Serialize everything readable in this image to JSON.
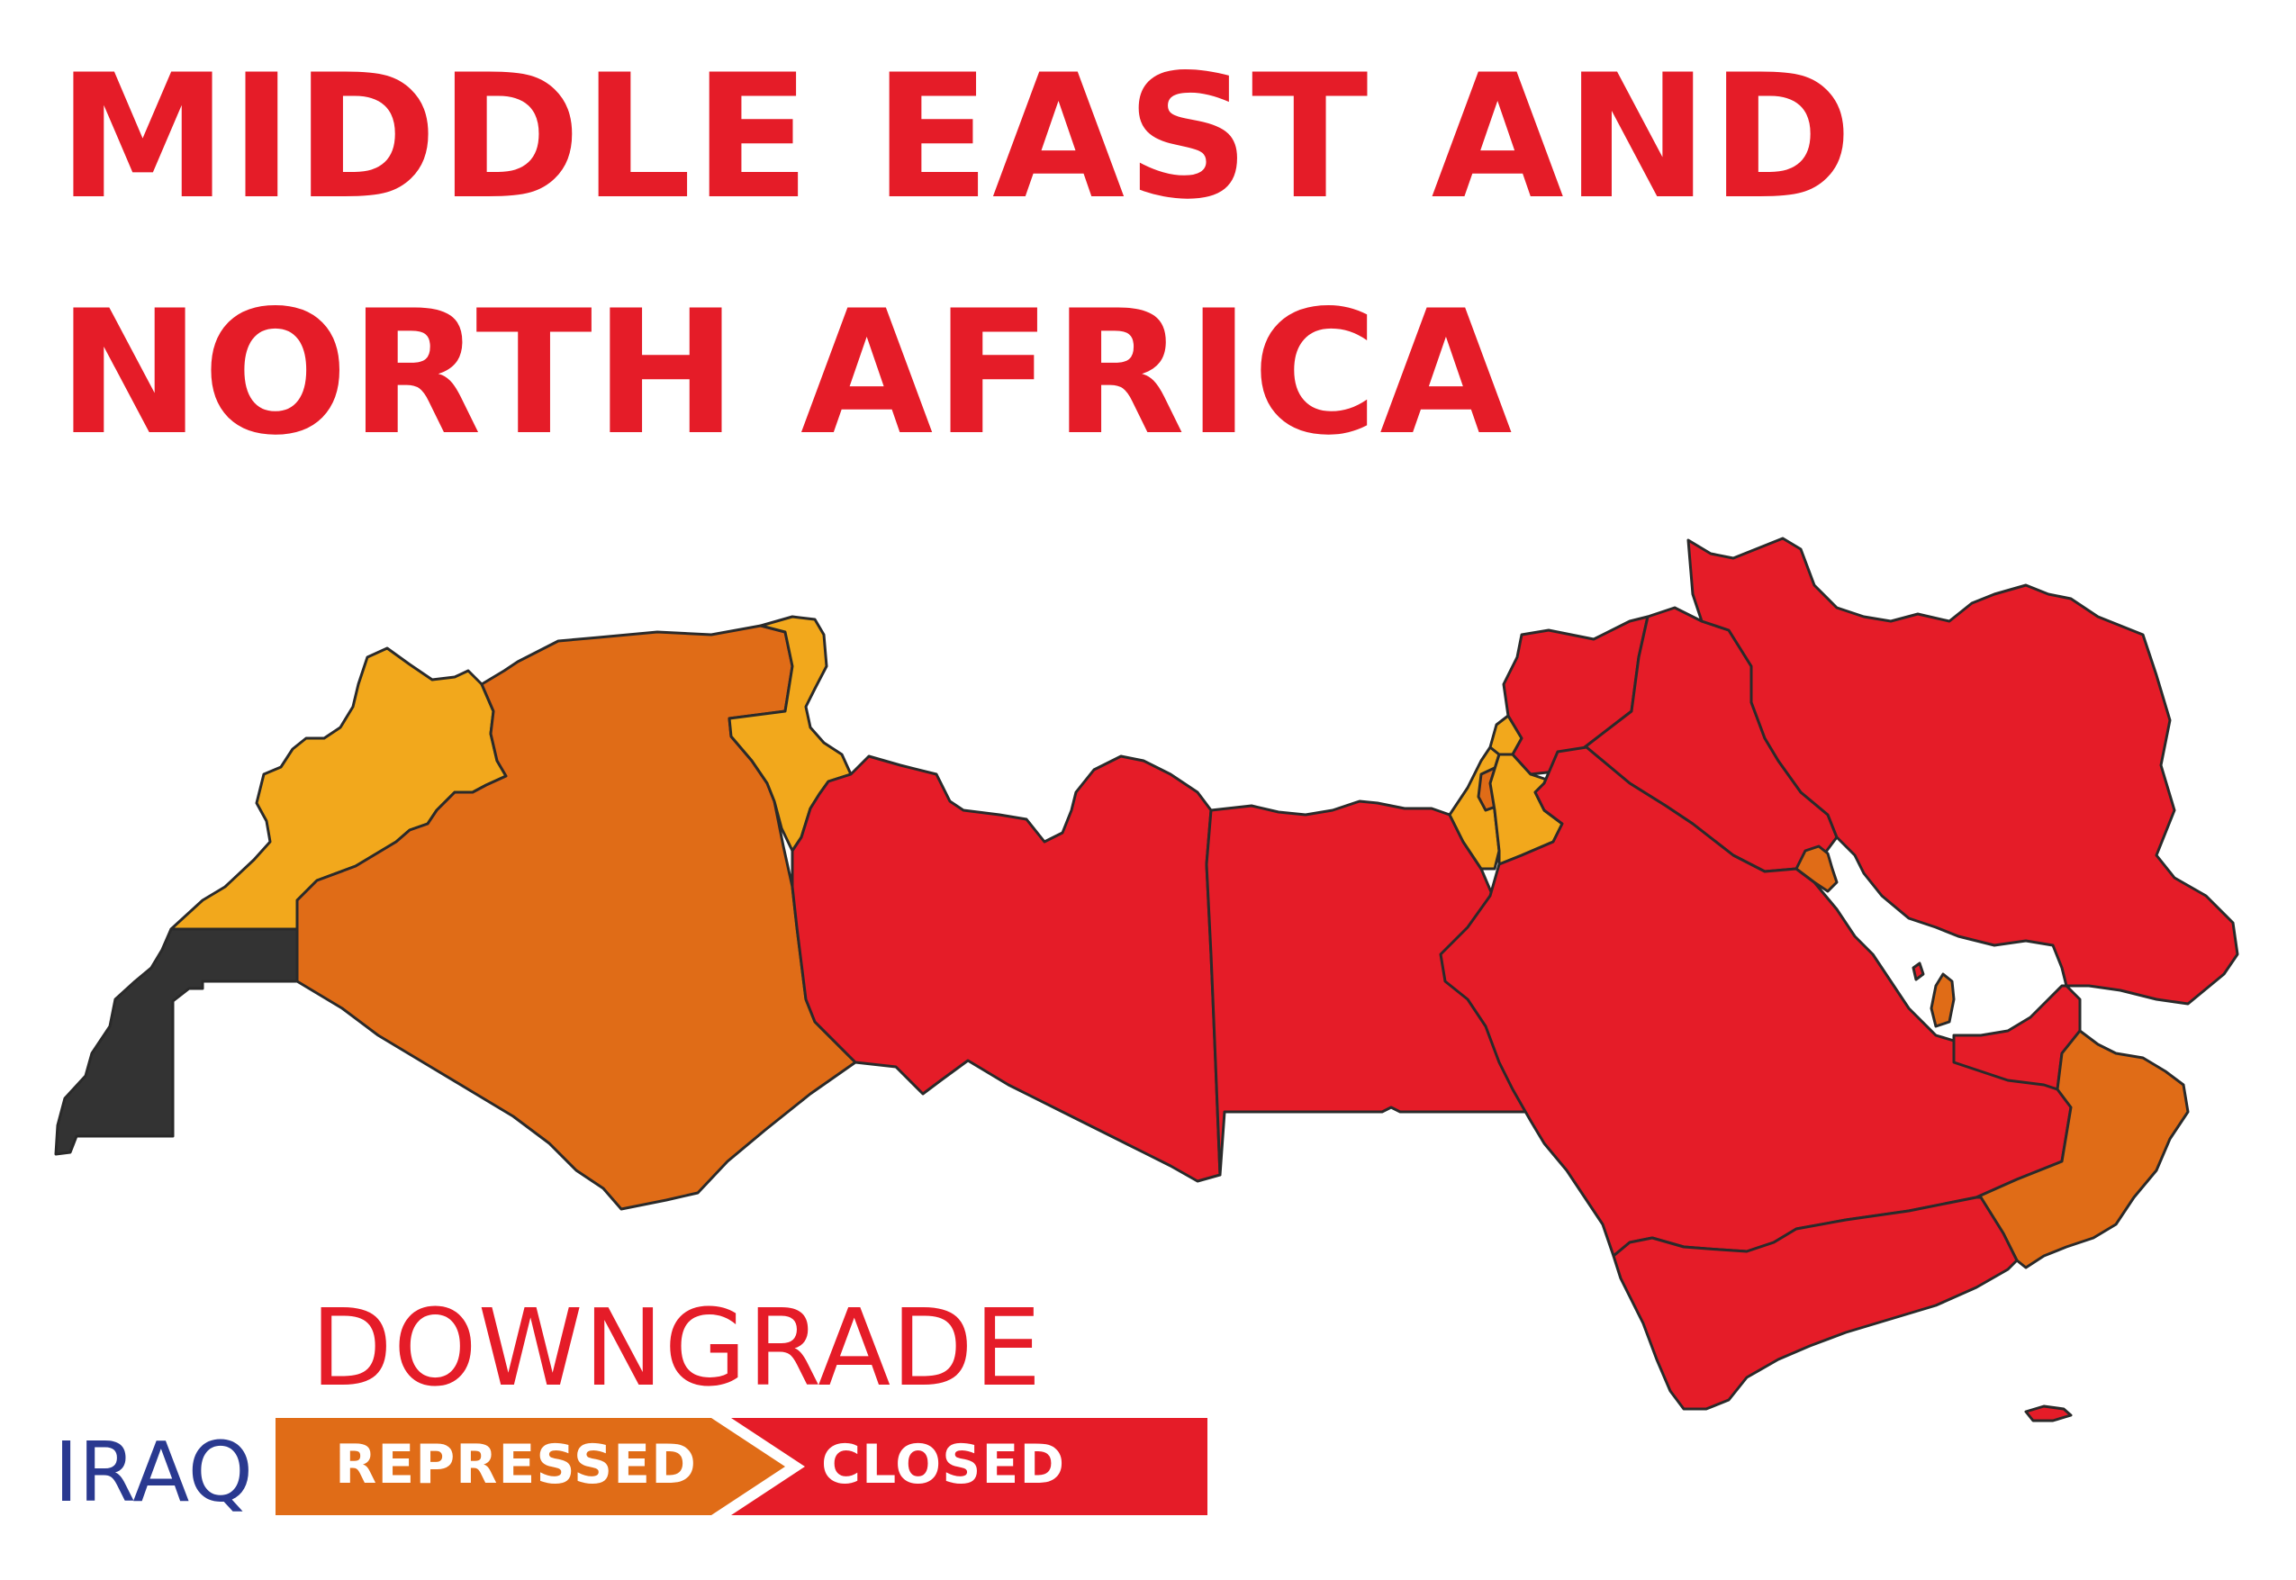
{
  "title": {
    "line1": "MIDDLE EAST AND",
    "line2": "NORTH AFRICA"
  },
  "legend": {
    "heading": "DOWNGRADE",
    "country": "IRAQ",
    "from_label": "REPRESSED",
    "to_label": "CLOSED"
  },
  "colors": {
    "closed": "#e51c28",
    "repressed": "#e06c17",
    "obstructed": "#f2a81c",
    "no_rating": "#333333",
    "title": "#e51c28",
    "country_text": "#2a3990",
    "border": "#2a2a2a"
  },
  "regions": [
    {
      "name": "western-sahara",
      "rating": "no_rating"
    },
    {
      "name": "morocco",
      "rating": "obstructed"
    },
    {
      "name": "algeria",
      "rating": "repressed"
    },
    {
      "name": "tunisia",
      "rating": "obstructed"
    },
    {
      "name": "libya",
      "rating": "closed"
    },
    {
      "name": "egypt",
      "rating": "closed"
    },
    {
      "name": "israel",
      "rating": "obstructed"
    },
    {
      "name": "palestine",
      "rating": "repressed"
    },
    {
      "name": "lebanon",
      "rating": "obstructed"
    },
    {
      "name": "jordan",
      "rating": "obstructed"
    },
    {
      "name": "syria",
      "rating": "closed"
    },
    {
      "name": "iraq",
      "rating": "closed"
    },
    {
      "name": "iran",
      "rating": "closed"
    },
    {
      "name": "saudi-arabia",
      "rating": "closed"
    },
    {
      "name": "kuwait",
      "rating": "repressed"
    },
    {
      "name": "bahrain",
      "rating": "closed"
    },
    {
      "name": "qatar",
      "rating": "repressed"
    },
    {
      "name": "uae",
      "rating": "closed"
    },
    {
      "name": "oman",
      "rating": "repressed"
    },
    {
      "name": "yemen",
      "rating": "closed"
    },
    {
      "name": "socotra",
      "rating": "closed"
    }
  ]
}
